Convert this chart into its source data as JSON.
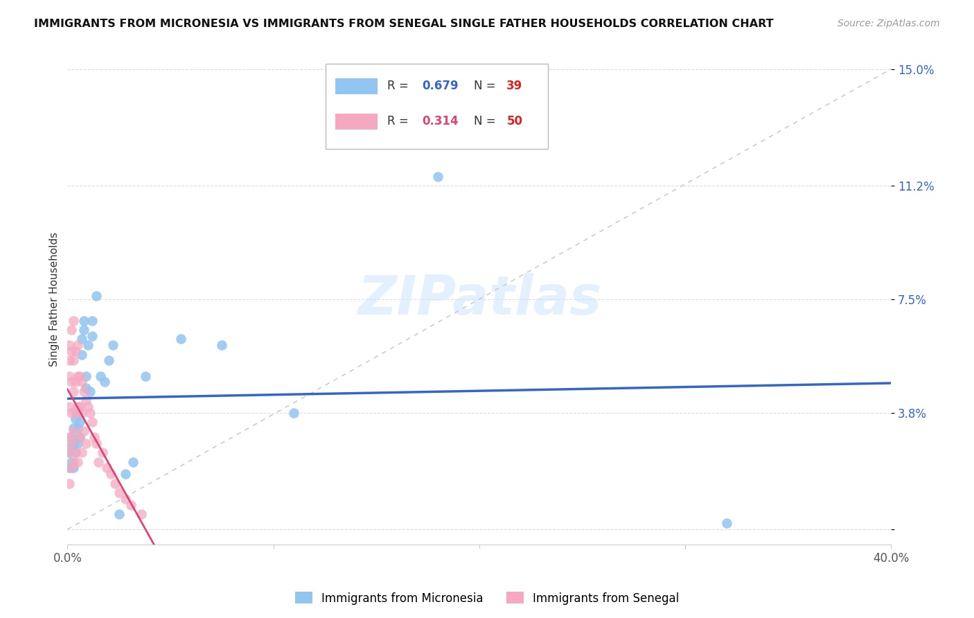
{
  "title": "IMMIGRANTS FROM MICRONESIA VS IMMIGRANTS FROM SENEGAL SINGLE FATHER HOUSEHOLDS CORRELATION CHART",
  "source": "Source: ZipAtlas.com",
  "ylabel": "Single Father Households",
  "xlim": [
    0.0,
    0.4
  ],
  "ylim": [
    -0.005,
    0.155
  ],
  "ytick_positions": [
    0.0,
    0.038,
    0.075,
    0.112,
    0.15
  ],
  "ytick_labels": [
    "",
    "3.8%",
    "7.5%",
    "11.2%",
    "15.0%"
  ],
  "xtick_positions": [
    0.0,
    0.1,
    0.2,
    0.3,
    0.4
  ],
  "xtick_labels": [
    "0.0%",
    "",
    "",
    "",
    "40.0%"
  ],
  "micronesia_color": "#92C5F0",
  "senegal_color": "#F5A8C0",
  "micronesia_line_color": "#3366CC",
  "senegal_line_color": "#DD4477",
  "diagonal_color": "#CCCCCC",
  "watermark": "ZIPatlas",
  "legend_label_micro": "Immigrants from Micronesia",
  "legend_label_senegal": "Immigrants from Senegal",
  "micronesia_R": 0.679,
  "micronesia_N": 39,
  "senegal_R": 0.314,
  "senegal_N": 50,
  "R_color_micro": "#3366CC",
  "R_color_senegal": "#DD4477",
  "N_color": "#DD2222",
  "micronesia_x": [
    0.001,
    0.001,
    0.002,
    0.002,
    0.002,
    0.003,
    0.003,
    0.003,
    0.004,
    0.004,
    0.005,
    0.005,
    0.005,
    0.006,
    0.006,
    0.007,
    0.007,
    0.008,
    0.008,
    0.009,
    0.009,
    0.01,
    0.011,
    0.012,
    0.012,
    0.014,
    0.016,
    0.018,
    0.02,
    0.022,
    0.025,
    0.028,
    0.032,
    0.038,
    0.055,
    0.075,
    0.11,
    0.18,
    0.32
  ],
  "micronesia_y": [
    0.025,
    0.02,
    0.03,
    0.027,
    0.022,
    0.033,
    0.028,
    0.02,
    0.036,
    0.025,
    0.038,
    0.033,
    0.028,
    0.035,
    0.03,
    0.062,
    0.057,
    0.068,
    0.065,
    0.05,
    0.046,
    0.06,
    0.045,
    0.068,
    0.063,
    0.076,
    0.05,
    0.048,
    0.055,
    0.06,
    0.005,
    0.018,
    0.022,
    0.05,
    0.062,
    0.06,
    0.038,
    0.115,
    0.002
  ],
  "senegal_x": [
    0.001,
    0.001,
    0.001,
    0.001,
    0.001,
    0.001,
    0.001,
    0.002,
    0.002,
    0.002,
    0.002,
    0.002,
    0.002,
    0.003,
    0.003,
    0.003,
    0.003,
    0.003,
    0.004,
    0.004,
    0.004,
    0.004,
    0.005,
    0.005,
    0.005,
    0.005,
    0.006,
    0.006,
    0.006,
    0.007,
    0.007,
    0.007,
    0.008,
    0.008,
    0.009,
    0.009,
    0.01,
    0.011,
    0.012,
    0.013,
    0.014,
    0.015,
    0.017,
    0.019,
    0.021,
    0.023,
    0.025,
    0.028,
    0.031,
    0.036
  ],
  "senegal_y": [
    0.06,
    0.055,
    0.05,
    0.04,
    0.03,
    0.025,
    0.015,
    0.065,
    0.058,
    0.048,
    0.038,
    0.028,
    0.02,
    0.068,
    0.055,
    0.045,
    0.032,
    0.022,
    0.058,
    0.048,
    0.038,
    0.025,
    0.06,
    0.05,
    0.04,
    0.022,
    0.05,
    0.04,
    0.03,
    0.048,
    0.038,
    0.025,
    0.045,
    0.032,
    0.042,
    0.028,
    0.04,
    0.038,
    0.035,
    0.03,
    0.028,
    0.022,
    0.025,
    0.02,
    0.018,
    0.015,
    0.012,
    0.01,
    0.008,
    0.005
  ]
}
